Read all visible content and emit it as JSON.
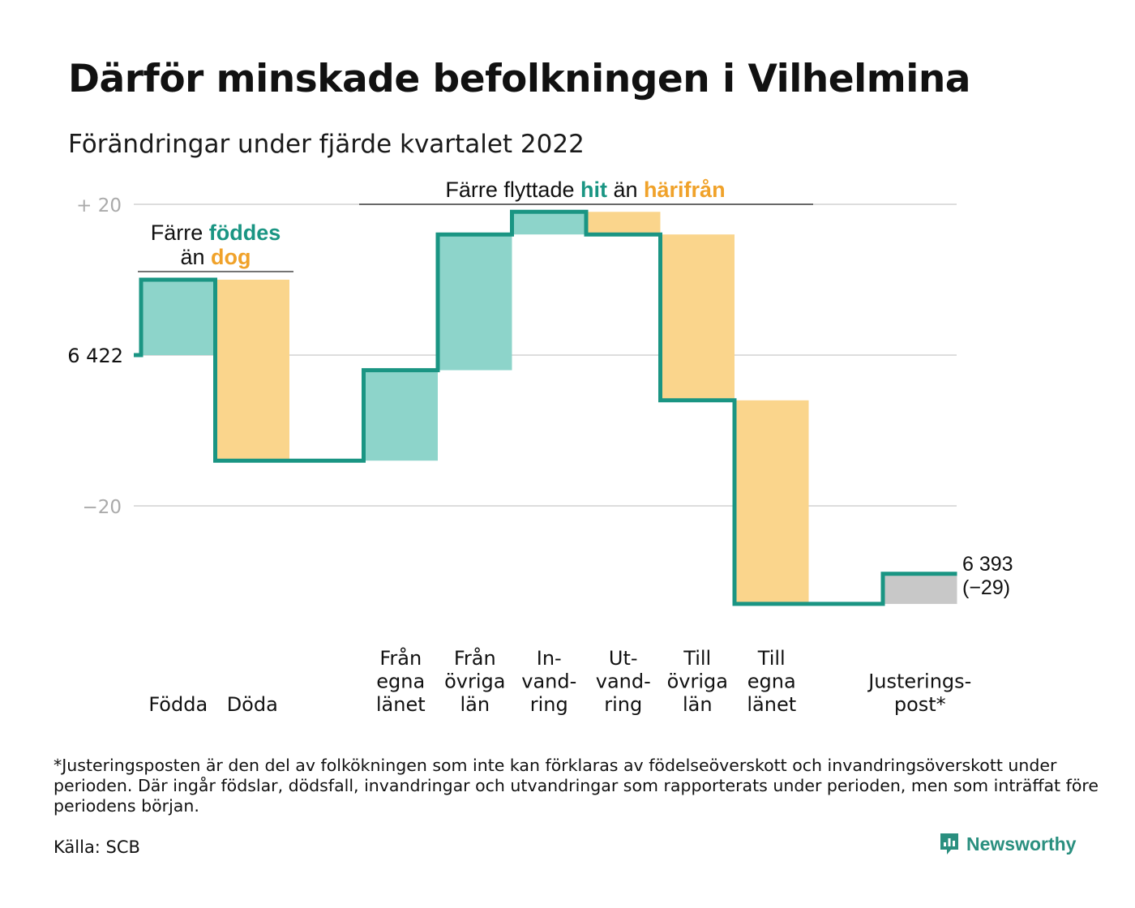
{
  "header": {
    "title": "Därför minskade befolkningen i Vilhelmina",
    "subtitle": "Förändringar under fjärde kvartalet 2022"
  },
  "colors": {
    "increase": "#8dd4ca",
    "decrease": "#fad58c",
    "adjustment": "#c8c8c8",
    "step_line": "#1a9583",
    "teal_text": "#1a9583",
    "orange_text": "#f0a22a",
    "grid": "#dddddd",
    "axis_text": "#aaaaaa"
  },
  "chart_data": {
    "type": "waterfall",
    "start_value": 6422,
    "start_label": "6 422",
    "end_value": 6393,
    "end_label": "6 393",
    "end_change_label": "(−29)",
    "ylim": [
      -34,
      20
    ],
    "y_ticks": [
      {
        "value": 20,
        "label": "+ 20"
      },
      {
        "value": 0,
        "label": ""
      },
      {
        "value": -20,
        "label": "−20"
      }
    ],
    "steps": [
      {
        "label": [
          "Födda"
        ],
        "delta": 10,
        "kind": "increase"
      },
      {
        "label": [
          "Döda"
        ],
        "delta": -24,
        "kind": "decrease"
      },
      {
        "label": [],
        "delta": 0,
        "kind": "spacer"
      },
      {
        "label": [
          "Från",
          "egna",
          "länet"
        ],
        "delta": 12,
        "kind": "increase"
      },
      {
        "label": [
          "Från",
          "övriga",
          "län"
        ],
        "delta": 18,
        "kind": "increase"
      },
      {
        "label": [
          "In-",
          "vand-",
          "ring"
        ],
        "delta": 3,
        "kind": "increase"
      },
      {
        "label": [
          "Ut-",
          "vand-",
          "ring"
        ],
        "delta": -3,
        "kind": "decrease"
      },
      {
        "label": [
          "Till",
          "övriga",
          "län"
        ],
        "delta": -22,
        "kind": "decrease"
      },
      {
        "label": [
          "Till",
          "egna",
          "länet"
        ],
        "delta": -27,
        "kind": "decrease"
      },
      {
        "label": [],
        "delta": 0,
        "kind": "spacer"
      },
      {
        "label": [
          "Justerings-",
          "post*"
        ],
        "delta": 4,
        "kind": "adjustment"
      }
    ],
    "annotations": {
      "births_deaths": {
        "prefix": "Färre ",
        "highlight1": "föddes",
        "line2_prefix": "än ",
        "highlight2": "dog"
      },
      "migration": {
        "prefix": "Färre flyttade ",
        "highlight1": "hit",
        "middle": " än ",
        "highlight2": "härifrån"
      }
    }
  },
  "footer": {
    "footnote": "*Justeringsposten är den del av folkökningen som inte kan förklaras av födelseöverskott och invandringsöverskott under perioden. Där ingår födslar, dödsfall, invandringar och utvandringar som rapporterats under perioden, men som inträffat före periodens början.",
    "source": "Källa: SCB",
    "logo_text": "Newsworthy"
  }
}
